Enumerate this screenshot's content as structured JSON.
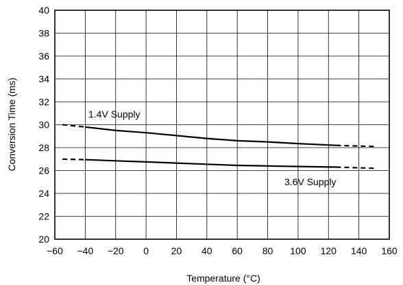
{
  "chart_data": {
    "type": "line",
    "title": "",
    "xlabel": "Temperature (°C)",
    "ylabel": "Conversion Time (ms)",
    "xlim": [
      -60,
      160
    ],
    "ylim": [
      20,
      40
    ],
    "x_ticks": [
      -60,
      -40,
      -20,
      0,
      20,
      40,
      60,
      80,
      100,
      120,
      140,
      160
    ],
    "x_tick_labels": [
      "−60",
      "−40",
      "−20",
      "0",
      "20",
      "40",
      "60",
      "80",
      "100",
      "120",
      "140",
      "160"
    ],
    "y_ticks": [
      20,
      22,
      24,
      26,
      28,
      30,
      32,
      34,
      36,
      38,
      40
    ],
    "y_tick_labels": [
      "20",
      "22",
      "24",
      "26",
      "28",
      "30",
      "32",
      "34",
      "36",
      "38",
      "40"
    ],
    "grid": true,
    "series": [
      {
        "name": "1.4V Supply",
        "x": [
          -55,
          -40,
          -20,
          0,
          20,
          40,
          60,
          80,
          100,
          125,
          150
        ],
        "y": [
          30.0,
          29.8,
          29.5,
          29.3,
          29.05,
          28.8,
          28.6,
          28.5,
          28.35,
          28.2,
          28.1
        ],
        "dashed_below_x": -40,
        "dashed_above_x": 125
      },
      {
        "name": "3.6V Supply",
        "x": [
          -55,
          -40,
          -20,
          0,
          20,
          40,
          60,
          80,
          100,
          125,
          150
        ],
        "y": [
          27.0,
          26.95,
          26.85,
          26.75,
          26.65,
          26.55,
          26.45,
          26.4,
          26.35,
          26.3,
          26.2
        ],
        "dashed_below_x": -40,
        "dashed_above_x": 125
      }
    ]
  }
}
